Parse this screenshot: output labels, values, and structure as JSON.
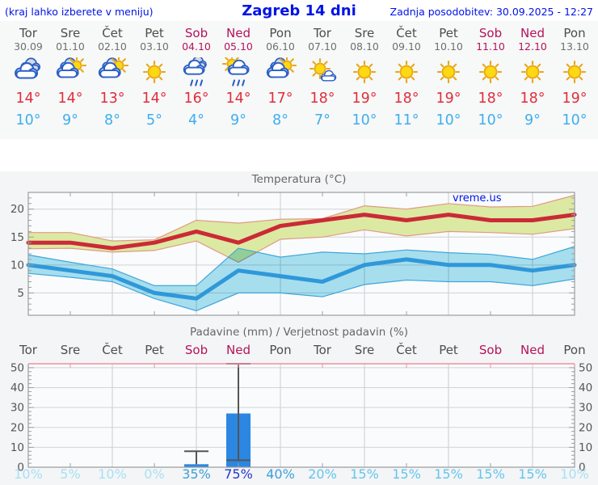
{
  "header": {
    "left_note": "(kraj lahko izberete v meniju)",
    "title": "Zagreb 14 dni",
    "updated": "Zadnja posodobitev: 30.09.2025 - 12:27"
  },
  "watermark": "vreme.us",
  "colors": {
    "link_blue": "#0013e6",
    "weekday_gray": "#4d4d4d",
    "weekend_red": "#b5125b",
    "date_gray": "#6f6f6f",
    "tmax_red": "#e02e3d",
    "tmin_blue": "#3daeef",
    "max_band_fill": "#dce9a2",
    "max_band_edge": "#e09a84",
    "max_line": "#cb2a37",
    "min_band_fill": "#a9e2f1",
    "min_band_edge": "#3fa6dc",
    "min_line": "#2f98d9",
    "bar_blue": "#2b87e2",
    "whisker_gray": "#555555",
    "frame_pink": "#ee8fa2",
    "prob_pale": "#a7e0f4",
    "prob_light": "#63c5ee",
    "prob_mid": "#3b9fdd",
    "prob_high": "#2337cd"
  },
  "days": [
    {
      "name": "Tor",
      "date": "30.09",
      "weekend": false,
      "icon": "cloudy",
      "tmax": "14°",
      "tmin": "10°",
      "pop": "10%"
    },
    {
      "name": "Sre",
      "date": "01.10",
      "weekend": false,
      "icon": "partly-cloudy",
      "tmax": "14°",
      "tmin": "9°",
      "pop": "5%"
    },
    {
      "name": "Čet",
      "date": "02.10",
      "weekend": false,
      "icon": "partly-cloudy",
      "tmax": "13°",
      "tmin": "8°",
      "pop": "10%"
    },
    {
      "name": "Pet",
      "date": "03.10",
      "weekend": false,
      "icon": "sunny",
      "tmax": "14°",
      "tmin": "5°",
      "pop": "0%"
    },
    {
      "name": "Sob",
      "date": "04.10",
      "weekend": true,
      "icon": "rain",
      "tmax": "16°",
      "tmin": "4°",
      "pop": "35%"
    },
    {
      "name": "Ned",
      "date": "05.10",
      "weekend": true,
      "icon": "sun-rain",
      "tmax": "14°",
      "tmin": "9°",
      "pop": "75%"
    },
    {
      "name": "Pon",
      "date": "06.10",
      "weekend": false,
      "icon": "partly-cloudy",
      "tmax": "17°",
      "tmin": "8°",
      "pop": "40%"
    },
    {
      "name": "Tor",
      "date": "07.10",
      "weekend": false,
      "icon": "mostly-sunny",
      "tmax": "18°",
      "tmin": "7°",
      "pop": "20%"
    },
    {
      "name": "Sre",
      "date": "08.10",
      "weekend": false,
      "icon": "sunny",
      "tmax": "19°",
      "tmin": "10°",
      "pop": "15%"
    },
    {
      "name": "Čet",
      "date": "09.10",
      "weekend": false,
      "icon": "sunny",
      "tmax": "18°",
      "tmin": "11°",
      "pop": "15%"
    },
    {
      "name": "Pet",
      "date": "10.10",
      "weekend": false,
      "icon": "sunny",
      "tmax": "19°",
      "tmin": "10°",
      "pop": "15%"
    },
    {
      "name": "Sob",
      "date": "11.10",
      "weekend": true,
      "icon": "sunny",
      "tmax": "18°",
      "tmin": "10°",
      "pop": "15%"
    },
    {
      "name": "Ned",
      "date": "12.10",
      "weekend": true,
      "icon": "sunny",
      "tmax": "18°",
      "tmin": "9°",
      "pop": "15%"
    },
    {
      "name": "Pon",
      "date": "13.10",
      "weekend": false,
      "icon": "sunny",
      "tmax": "19°",
      "tmin": "10°",
      "pop": "10%"
    }
  ],
  "chart_data": [
    {
      "type": "line",
      "title": "Temperatura (°C)",
      "x_labels": [
        "Tor",
        "Sre",
        "Čet",
        "Pet",
        "Sob",
        "Ned",
        "Pon",
        "Tor",
        "Sre",
        "Čet",
        "Pet",
        "Sob",
        "Ned",
        "Pon"
      ],
      "ylim": [
        1,
        23
      ],
      "yticks": [
        5,
        10,
        15,
        20
      ],
      "grid": true,
      "series": [
        {
          "name": "max_temp",
          "values": [
            14,
            14,
            13,
            14,
            16,
            14,
            17,
            18,
            19,
            18,
            19,
            18,
            18,
            19
          ]
        },
        {
          "name": "max_range_upper",
          "values": [
            15.8,
            15.8,
            14.3,
            14.5,
            18,
            17.5,
            18.2,
            18.3,
            20.6,
            20,
            21,
            20.4,
            20.5,
            22.5
          ]
        },
        {
          "name": "max_range_lower",
          "values": [
            12.9,
            13,
            12.3,
            12.6,
            14.3,
            10.5,
            14.6,
            15,
            16.3,
            15.2,
            16,
            15.8,
            15.5,
            16.5
          ]
        },
        {
          "name": "min_temp",
          "values": [
            10,
            9,
            8,
            5,
            4,
            9,
            8,
            7,
            10,
            11,
            10,
            10,
            9,
            10
          ]
        },
        {
          "name": "min_range_upper",
          "values": [
            11.8,
            10.5,
            9.3,
            6.3,
            6.3,
            13,
            11.4,
            12.3,
            12,
            12.7,
            12.2,
            11.9,
            11,
            13.3
          ]
        },
        {
          "name": "min_range_lower",
          "values": [
            8.5,
            7.8,
            7,
            4,
            1.8,
            5,
            5,
            4.3,
            6.5,
            7.3,
            7,
            7,
            6.3,
            7.5
          ]
        }
      ]
    },
    {
      "type": "bar",
      "title": "Padavine (mm) / Verjetnost padavin (%)",
      "x_labels": [
        "Tor",
        "Sre",
        "Čet",
        "Pet",
        "Sob",
        "Ned",
        "Pon",
        "Tor",
        "Sre",
        "Čet",
        "Pet",
        "Sob",
        "Ned",
        "Pon"
      ],
      "ylim": [
        0,
        52
      ],
      "yticks": [
        0,
        10,
        20,
        30,
        40,
        50
      ],
      "grid": true,
      "precip_mm": [
        0,
        0,
        0,
        0,
        1.5,
        27,
        0,
        0,
        0,
        0,
        0,
        0,
        0,
        0
      ],
      "whisker_low": [
        null,
        null,
        null,
        null,
        null,
        3.5,
        null,
        null,
        null,
        null,
        null,
        null,
        null,
        null
      ],
      "whisker_high": [
        null,
        null,
        null,
        null,
        8,
        52,
        null,
        null,
        null,
        null,
        null,
        null,
        null,
        null
      ],
      "probability_pct": [
        10,
        5,
        10,
        0,
        35,
        75,
        40,
        20,
        15,
        15,
        15,
        15,
        15,
        10
      ]
    }
  ]
}
